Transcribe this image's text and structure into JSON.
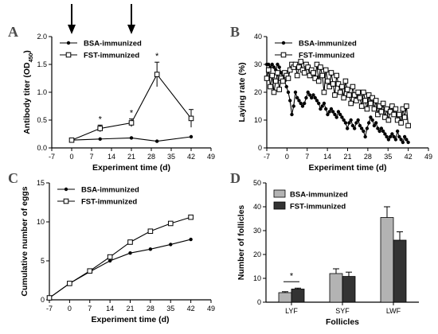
{
  "figure": {
    "panel_letters": [
      "A",
      "B",
      "C",
      "D"
    ]
  },
  "chart_data": [
    {
      "panel": "A",
      "type": "line",
      "xlabel": "Experiment time (d)",
      "ylabel": "Antibody titer (OD",
      "ylabel_sub": "450",
      "ylabel_close": ")",
      "xlim": [
        -7,
        49
      ],
      "ylim": [
        0,
        2.0
      ],
      "xticks": [
        -7,
        0,
        7,
        14,
        21,
        28,
        35,
        42,
        49
      ],
      "yticks": [
        0.0,
        0.5,
        1.0,
        1.5,
        2.0
      ],
      "ytick_labels": [
        "0.0",
        "0.5",
        "1.0",
        "1.5",
        "2.0"
      ],
      "legend_position": "top-left",
      "immunization_days": [
        0,
        21
      ],
      "series": [
        {
          "name": "BSA-immunized",
          "marker": "filled-circle",
          "x": [
            0,
            10,
            21,
            30,
            42
          ],
          "y": [
            0.14,
            0.16,
            0.18,
            0.12,
            0.2
          ],
          "err": [
            0,
            0,
            0,
            0,
            0
          ]
        },
        {
          "name": "FST-immunized",
          "marker": "open-square",
          "x": [
            0,
            10,
            21,
            30,
            42
          ],
          "y": [
            0.14,
            0.35,
            0.45,
            1.32,
            0.53
          ],
          "err": [
            0,
            0.06,
            0.07,
            0.22,
            0.16
          ]
        }
      ],
      "significance": [
        {
          "x": 10,
          "label": "*"
        },
        {
          "x": 21,
          "label": "*"
        },
        {
          "x": 30,
          "label": "*"
        }
      ]
    },
    {
      "panel": "B",
      "type": "line",
      "xlabel": "Experiment time (d)",
      "ylabel": "Laying rate (%)",
      "xlim": [
        -7,
        49
      ],
      "ylim": [
        0,
        40
      ],
      "xticks": [
        -7,
        0,
        7,
        14,
        21,
        28,
        35,
        42,
        49
      ],
      "yticks": [
        0,
        10,
        20,
        30,
        40
      ],
      "ytick_labels": [
        "0",
        "10",
        "20",
        "30",
        "40"
      ],
      "legend_position": "top-left",
      "series": [
        {
          "name": "BSA-immunized",
          "marker": "filled-circle",
          "x_start": -7,
          "y": [
            30,
            30,
            29,
            30,
            29,
            28,
            30,
            29,
            27,
            25,
            24,
            22,
            20,
            17,
            12,
            15,
            20,
            18,
            17,
            16,
            15,
            16,
            18,
            20,
            19,
            18,
            19,
            18,
            17,
            16,
            14,
            15,
            16,
            14,
            12,
            13,
            14,
            13,
            12,
            11,
            13,
            12,
            11,
            10,
            9,
            7,
            9,
            10,
            8,
            7,
            9,
            10,
            8,
            7,
            6,
            4,
            7,
            9,
            11,
            10,
            8,
            9,
            7,
            6,
            7,
            6,
            5,
            4,
            3,
            4,
            5,
            4,
            3,
            6,
            4,
            3,
            2,
            4,
            3,
            2
          ]
        },
        {
          "name": "FST-immunized",
          "marker": "open-square",
          "x_start": -7,
          "y": [
            25,
            28,
            22,
            26,
            20,
            24,
            27,
            21,
            25,
            24,
            27,
            26,
            25,
            28,
            30,
            29,
            30,
            26,
            29,
            31,
            28,
            27,
            30,
            29,
            26,
            28,
            27,
            25,
            30,
            24,
            29,
            26,
            20,
            28,
            24,
            22,
            27,
            23,
            19,
            26,
            23,
            20,
            22,
            18,
            24,
            21,
            19,
            16,
            22,
            19,
            17,
            20,
            18,
            15,
            20,
            17,
            14,
            19,
            16,
            18,
            14,
            17,
            12,
            15,
            13,
            16,
            11,
            14,
            10,
            13,
            15,
            12,
            14,
            10,
            12,
            9,
            14,
            11,
            15,
            8
          ]
        }
      ]
    },
    {
      "panel": "C",
      "type": "line",
      "xlabel": "Experiment time (d)",
      "ylabel": "Cumulative number of eggs",
      "xlim": [
        -7,
        49
      ],
      "ylim": [
        0,
        15
      ],
      "xticks": [
        -7,
        0,
        7,
        14,
        21,
        28,
        35,
        42,
        49
      ],
      "yticks": [
        0,
        5,
        10,
        15
      ],
      "ytick_labels": [
        "0",
        "5",
        "10",
        "15"
      ],
      "legend_position": "top-left",
      "series": [
        {
          "name": "BSA-immunized",
          "marker": "filled-circle",
          "x": [
            -7,
            0,
            7,
            14,
            21,
            28,
            35,
            42
          ],
          "y": [
            0.25,
            2.1,
            3.6,
            5.0,
            6.0,
            6.5,
            7.1,
            7.75
          ]
        },
        {
          "name": "FST-immunized",
          "marker": "open-square",
          "x": [
            -7,
            0,
            7,
            14,
            21,
            28,
            35,
            42
          ],
          "y": [
            0.25,
            2.1,
            3.7,
            5.5,
            7.4,
            8.8,
            9.8,
            10.6
          ]
        }
      ]
    },
    {
      "panel": "D",
      "type": "bar",
      "xlabel": "Follicles",
      "ylabel": "Number of follicles",
      "categories": [
        "LYF",
        "SYF",
        "LWF"
      ],
      "ylim": [
        0,
        50
      ],
      "yticks": [
        0,
        10,
        20,
        30,
        40,
        50
      ],
      "ytick_labels": [
        "0",
        "10",
        "20",
        "30",
        "40",
        "50"
      ],
      "legend_position": "top-left",
      "series": [
        {
          "name": "BSA-immunized",
          "color": "#b3b3b3",
          "values": [
            4.0,
            12.0,
            35.5
          ],
          "err": [
            0.4,
            2.0,
            4.5
          ]
        },
        {
          "name": "FST-immunized",
          "color": "#333333",
          "values": [
            5.5,
            10.8,
            26.0
          ],
          "err": [
            0.4,
            1.8,
            3.5
          ]
        }
      ],
      "significance": [
        {
          "category": "LYF",
          "label": "*"
        }
      ]
    }
  ]
}
